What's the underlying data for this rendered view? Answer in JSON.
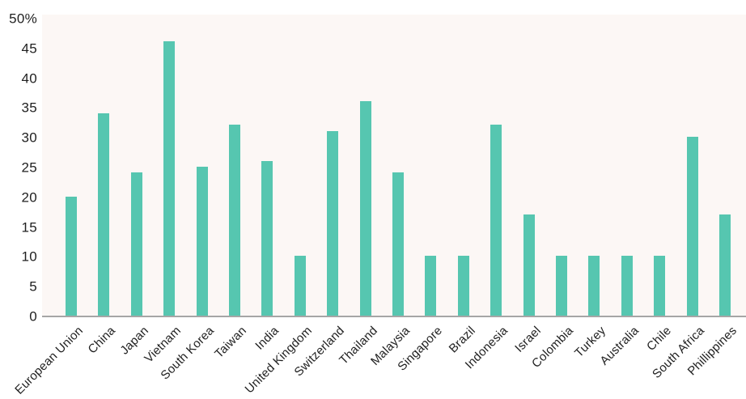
{
  "chart_data": {
    "type": "bar",
    "title": "",
    "categories": [
      "European Union",
      "China",
      "Japan",
      "Vietnam",
      "South Korea",
      "Taiwan",
      "India",
      "United Kingdom",
      "Switzerland",
      "Thailand",
      "Malaysia",
      "Singapore",
      "Brazil",
      "Indonesia",
      "Israel",
      "Colombia",
      "Turkey",
      "Australia",
      "Chile",
      "South Africa",
      "Phillippines"
    ],
    "values": [
      20,
      34,
      24,
      46,
      25,
      32,
      26,
      10,
      31,
      36,
      24,
      10,
      10,
      32,
      17,
      10,
      10,
      10,
      10,
      30,
      17
    ],
    "unit": "%",
    "xlabel": "",
    "ylabel": "",
    "ylim": [
      0,
      50
    ],
    "y_tick_labels": [
      "50%",
      "45",
      "40",
      "35",
      "30",
      "25",
      "20",
      "15",
      "10",
      "5",
      "0"
    ],
    "y_tick_values": [
      50,
      45,
      40,
      35,
      30,
      25,
      20,
      15,
      10,
      5,
      0
    ],
    "grid": false,
    "legend": false,
    "colors": {
      "bar": "#56c6b0",
      "plot_background": "#fcf7f5",
      "axis_line": "#a6a6a6",
      "text": "#1f1f1f"
    }
  }
}
